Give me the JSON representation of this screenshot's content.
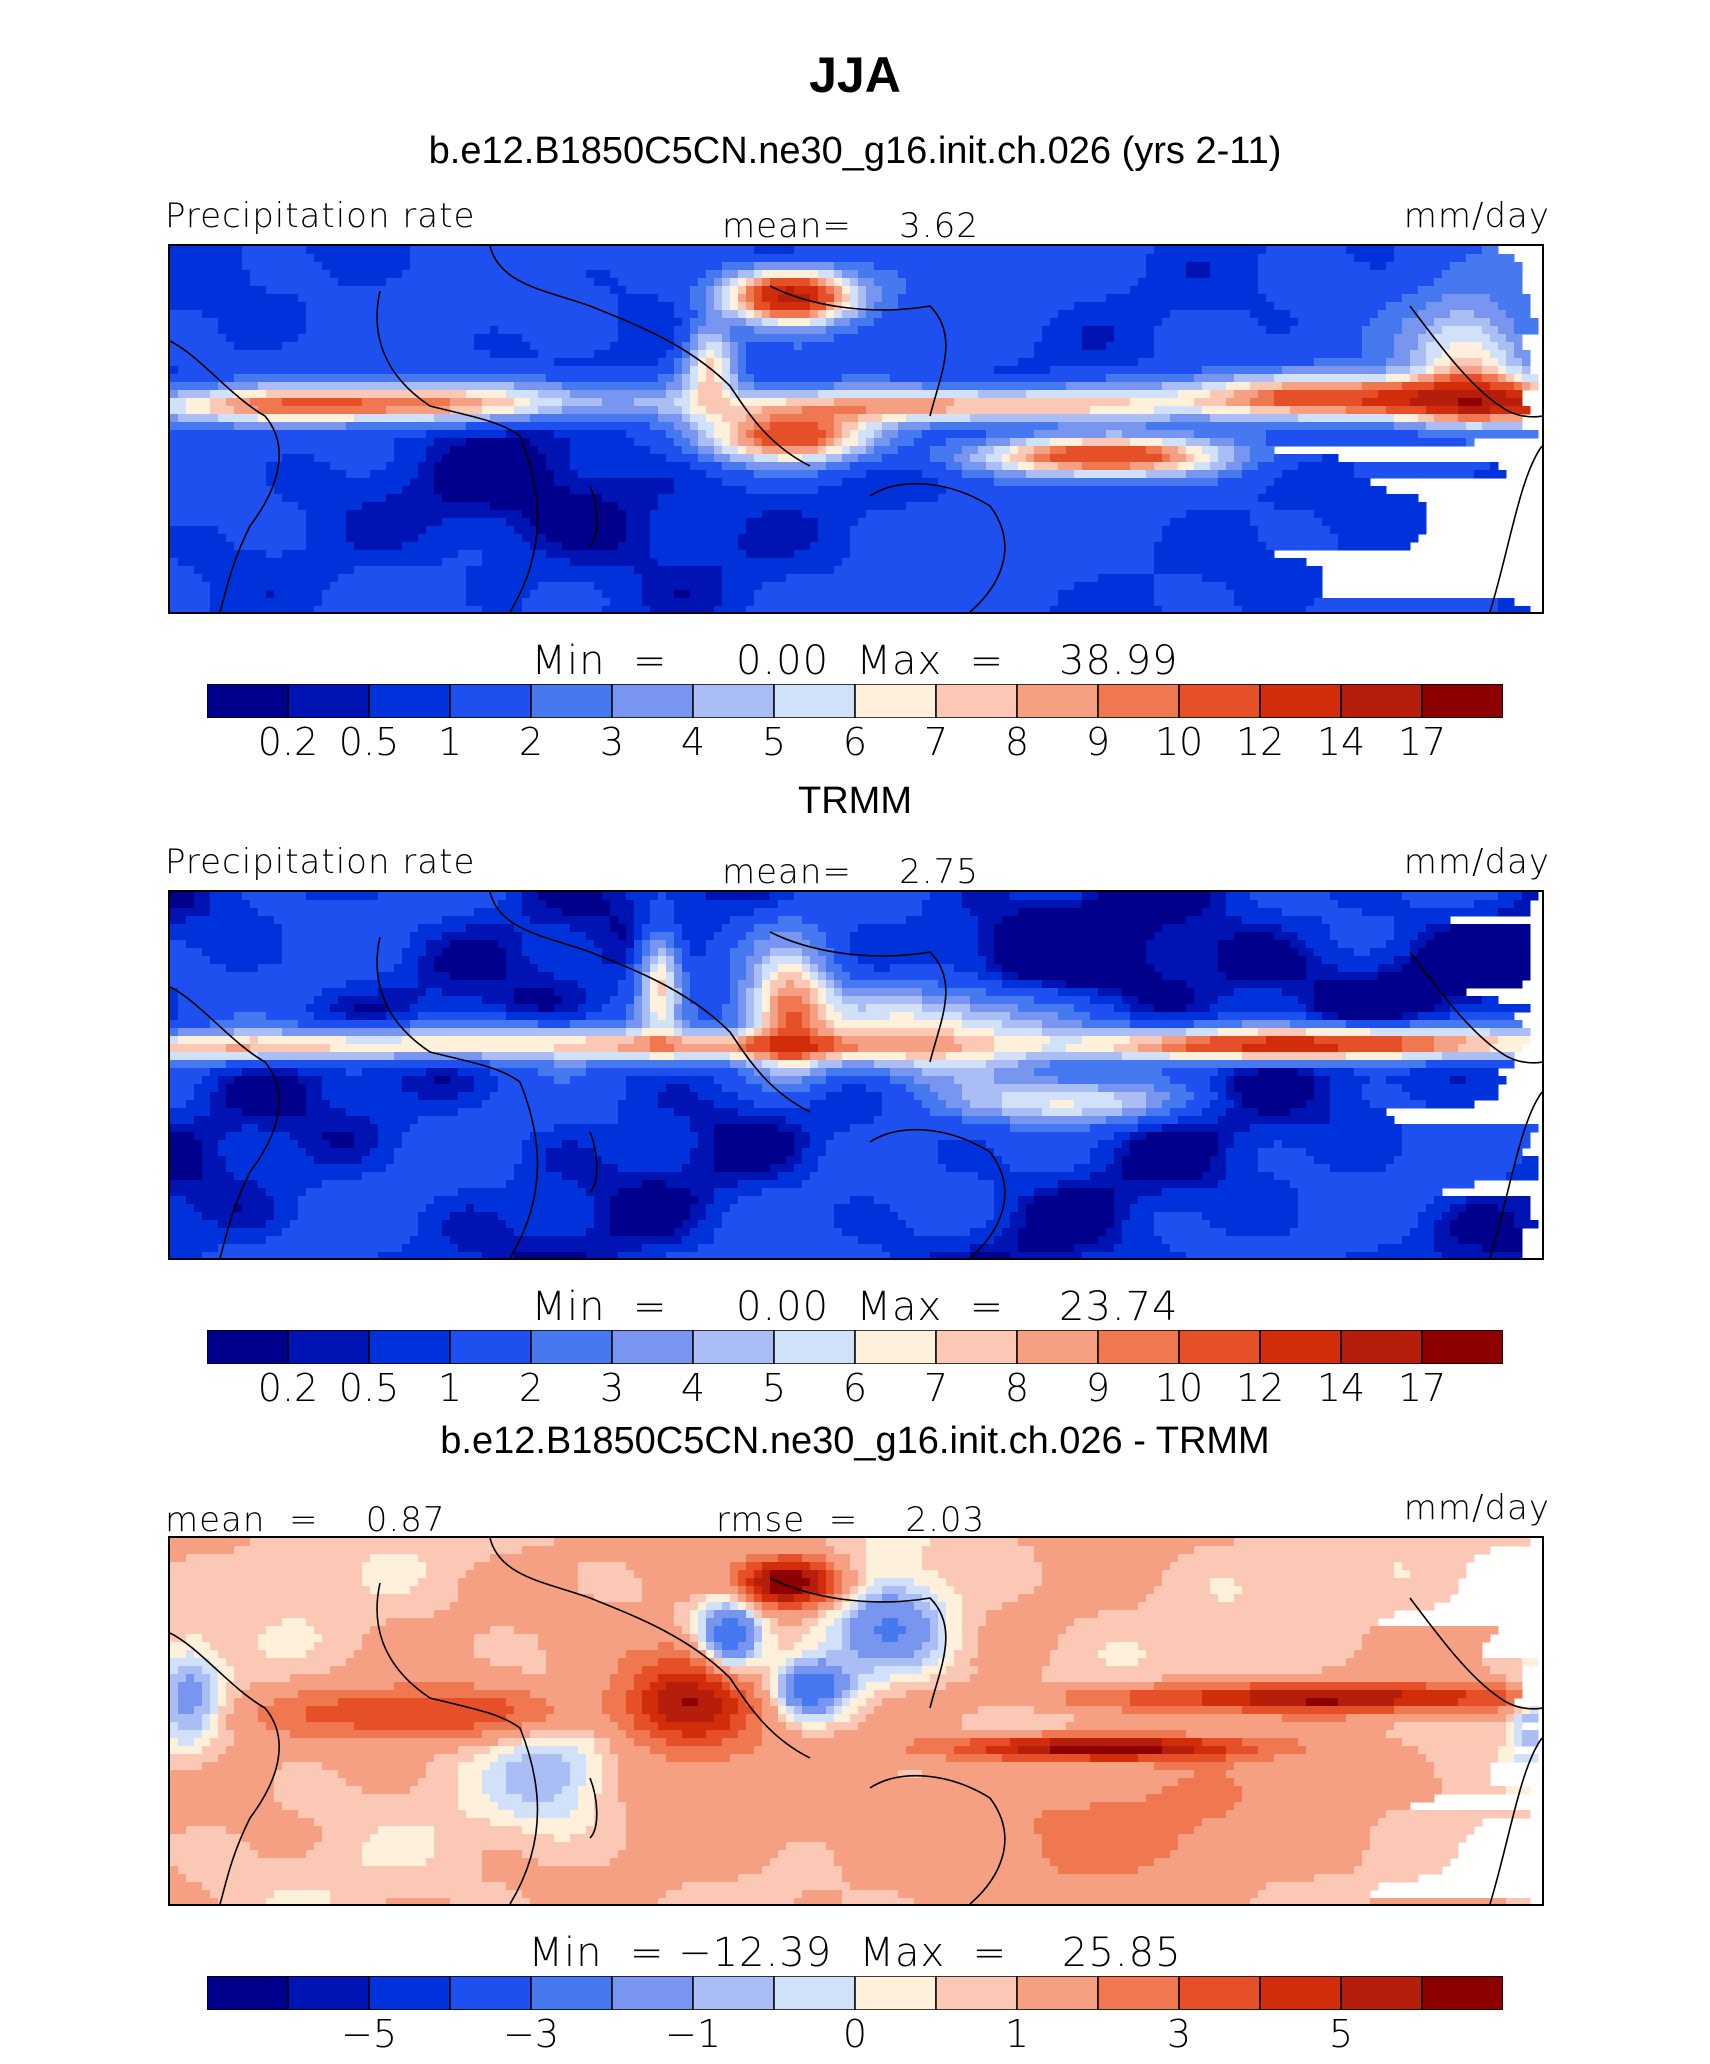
{
  "figure": {
    "title": "JJA",
    "subtitle": "b.e12.B1850C5CN.ne30_g16.init.ch.026 (yrs 2-11)"
  },
  "chart_data": [
    {
      "type": "heatmap",
      "panel_title": "b.e12.B1850C5CN.ne30_g16.init.ch.026 (yrs 2-11)",
      "left_label": "Precipitation rate",
      "center_label": "mean=    3.62",
      "right_label": "mm/day",
      "mean": 3.62,
      "min_max": "Min  =     0.00  Max  =    38.99",
      "min": 0.0,
      "max": 38.99,
      "levels": [
        "0.2",
        "0.5",
        "1",
        "2",
        "3",
        "4",
        "5",
        "6",
        "7",
        "8",
        "9",
        "10",
        "12",
        "14",
        "17"
      ]
    },
    {
      "type": "heatmap",
      "panel_title": "TRMM",
      "left_label": "Precipitation rate",
      "center_label": "mean=    2.75",
      "right_label": "mm/day",
      "mean": 2.75,
      "min_max": "Min  =     0.00  Max  =    23.74",
      "min": 0.0,
      "max": 23.74,
      "levels": [
        "0.2",
        "0.5",
        "1",
        "2",
        "3",
        "4",
        "5",
        "6",
        "7",
        "8",
        "9",
        "10",
        "12",
        "14",
        "17"
      ]
    },
    {
      "type": "heatmap",
      "panel_title": "b.e12.B1850C5CN.ne30_g16.init.ch.026 - TRMM",
      "left_label": "mean  =    0.87",
      "center_label": "rmse  =    2.03",
      "right_label": "mm/day",
      "mean": 0.87,
      "rmse": 2.03,
      "min_max": "Min  = −12.39  Max  =    25.85",
      "min": -12.39,
      "max": 25.85,
      "levels": [
        "−5",
        "−3",
        "−1",
        "0",
        "1",
        "3",
        "5"
      ]
    }
  ],
  "colors": {
    "palette": [
      "#00008c",
      "#0014b4",
      "#0032dc",
      "#1e50f0",
      "#4678f0",
      "#7896f0",
      "#aabef5",
      "#d2e1fa",
      "#fff0dc",
      "#fac8b4",
      "#f5a082",
      "#f07850",
      "#e65028",
      "#d22d0a",
      "#b41e0a",
      "#8c0000"
    ]
  }
}
